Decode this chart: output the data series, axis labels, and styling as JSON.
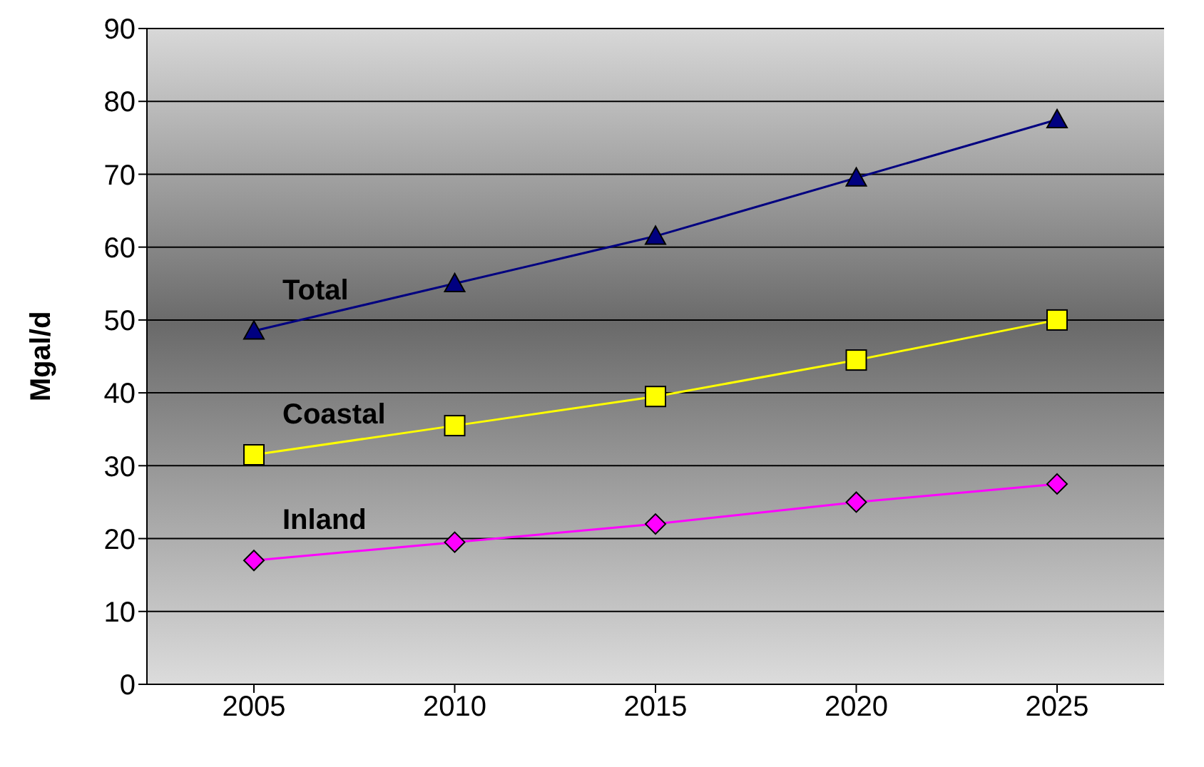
{
  "chart_data": {
    "type": "line",
    "ylabel": "Mgal/d",
    "categories": [
      "2005",
      "2010",
      "2015",
      "2020",
      "2025"
    ],
    "series": [
      {
        "name": "Total",
        "color": "#000080",
        "marker": "triangle",
        "values": [
          48.5,
          55,
          61.5,
          69.5,
          77.5
        ]
      },
      {
        "name": "Coastal",
        "color": "#ffff00",
        "marker": "square",
        "values": [
          31.5,
          35.5,
          39.5,
          44.5,
          50
        ]
      },
      {
        "name": "Inland",
        "color": "#ff00ff",
        "marker": "diamond",
        "values": [
          17,
          19.5,
          22,
          25,
          27.5
        ]
      }
    ],
    "ylim": [
      0,
      90
    ],
    "yticks": [
      0,
      10,
      20,
      30,
      40,
      50,
      60,
      70,
      80,
      90
    ],
    "grid": "y"
  }
}
